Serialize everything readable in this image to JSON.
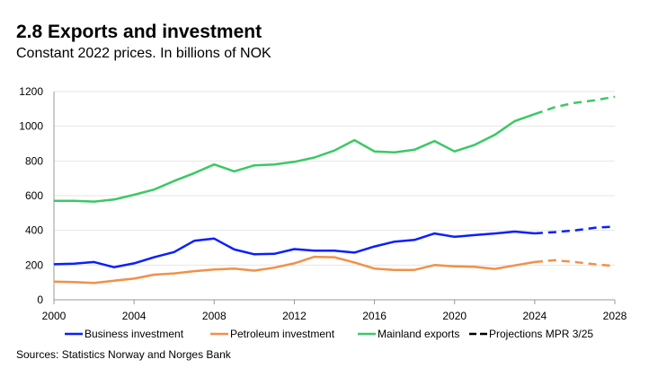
{
  "title": "2.8 Exports and investment",
  "subtitle": "Constant 2022 prices. In billions of NOK",
  "source": "Sources: Statistics Norway and Norges Bank",
  "chart_data": {
    "type": "line",
    "title": "2.8 Exports and investment",
    "xlim": [
      2000,
      2028
    ],
    "ylim": [
      0,
      1200
    ],
    "xticks": [
      2000,
      2004,
      2008,
      2012,
      2016,
      2020,
      2024,
      2028
    ],
    "yticks": [
      0,
      200,
      400,
      600,
      800,
      1000,
      1200
    ],
    "grid": "horizontal",
    "legend_placement": "bottom",
    "projection_start": 2024,
    "x": [
      2000,
      2001,
      2002,
      2003,
      2004,
      2005,
      2006,
      2007,
      2008,
      2009,
      2010,
      2011,
      2012,
      2013,
      2014,
      2015,
      2016,
      2017,
      2018,
      2019,
      2020,
      2021,
      2022,
      2023,
      2024,
      2025,
      2026,
      2027,
      2028
    ],
    "series": [
      {
        "name": "Business investment",
        "color": "#0a1fff",
        "values": [
          205,
          208,
          218,
          188,
          210,
          245,
          275,
          340,
          353,
          290,
          262,
          265,
          292,
          283,
          283,
          272,
          307,
          335,
          345,
          382,
          363,
          373,
          382,
          393,
          383,
          390,
          400,
          415,
          422
        ]
      },
      {
        "name": "Petroleum investment",
        "color": "#f0914a",
        "values": [
          105,
          102,
          97,
          110,
          122,
          145,
          152,
          165,
          175,
          180,
          168,
          185,
          210,
          248,
          245,
          215,
          180,
          172,
          172,
          200,
          193,
          190,
          178,
          198,
          218,
          228,
          218,
          205,
          195
        ]
      },
      {
        "name": "Mainland exports",
        "color": "#3cc864",
        "values": [
          570,
          570,
          566,
          578,
          605,
          635,
          685,
          730,
          780,
          740,
          775,
          780,
          795,
          820,
          860,
          920,
          855,
          850,
          865,
          915,
          855,
          893,
          950,
          1030,
          1070,
          1110,
          1135,
          1150,
          1170
        ]
      }
    ],
    "legend": [
      {
        "label": "Business investment",
        "color": "#0a1fff",
        "style": "solid"
      },
      {
        "label": "Petroleum investment",
        "color": "#f0914a",
        "style": "solid"
      },
      {
        "label": "Mainland exports",
        "color": "#3cc864",
        "style": "solid"
      },
      {
        "label": "Projections MPR 3/25",
        "color": "#000000",
        "style": "dashed"
      }
    ]
  }
}
